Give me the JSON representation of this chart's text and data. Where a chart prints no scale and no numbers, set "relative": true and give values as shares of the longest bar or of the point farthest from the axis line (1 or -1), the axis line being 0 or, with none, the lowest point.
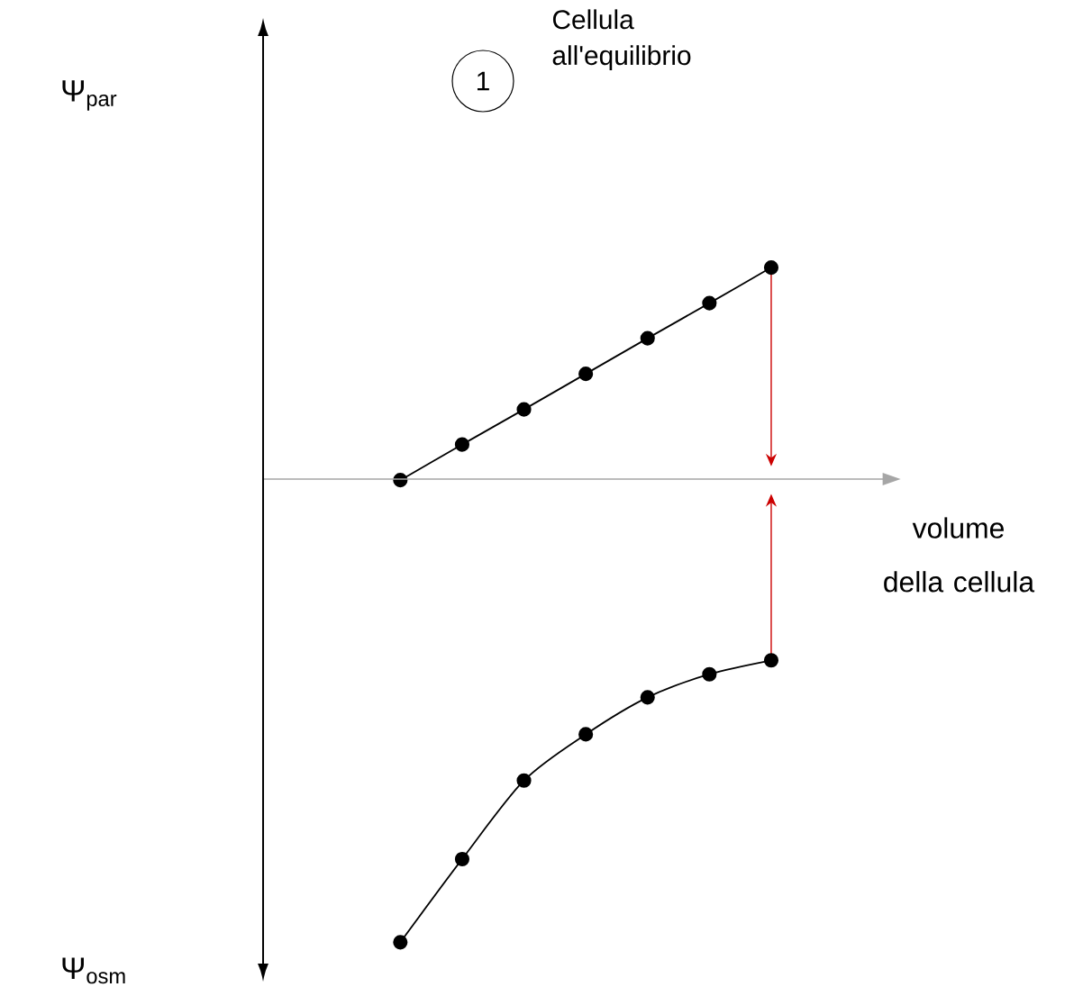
{
  "chart_data": {
    "type": "line",
    "relative": true,
    "xlabel": "volume della cellula",
    "annotations": [
      "1",
      "Cellula all'equilibrio",
      "Ψ$_{par}$",
      "Ψ$_{osm}$"
    ],
    "categories": [
      null,
      null,
      null,
      null,
      null,
      null,
      null
    ],
    "marker": "circle",
    "line_style": "solid",
    "series": [
      {
        "color": "#000000",
        "values": [
          0,
          0.077,
          0.153,
          0.23,
          0.307,
          0.383,
          0.46
        ]
      },
      {
        "color": "#000000",
        "values": [
          -1,
          -0.82,
          -0.65,
          -0.55,
          -0.47,
          -0.42,
          -0.39
        ]
      }
    ]
  }
}
